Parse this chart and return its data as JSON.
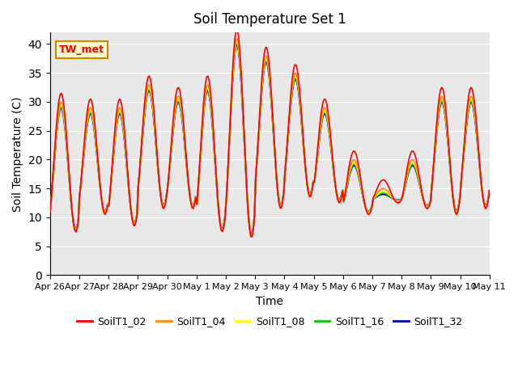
{
  "title": "Soil Temperature Set 1",
  "ylabel": "Soil Temperature (C)",
  "xlabel": "Time",
  "annotation": "TW_met",
  "series_names": [
    "SoilT1_02",
    "SoilT1_04",
    "SoilT1_08",
    "SoilT1_16",
    "SoilT1_32"
  ],
  "series_colors": [
    "#ff0000",
    "#ff8800",
    "#ffff00",
    "#00cc00",
    "#0000cc"
  ],
  "ylim": [
    0,
    42
  ],
  "yticks": [
    0,
    5,
    10,
    15,
    20,
    25,
    30,
    35,
    40
  ],
  "bg_color": "#e8e8e8",
  "x_tick_labels": [
    "Apr 26",
    "Apr 27",
    "Apr 28",
    "Apr 29",
    "Apr 30",
    "May 1",
    "May 2",
    "May 3",
    "May 4",
    "May 5",
    "May 6",
    "May 7",
    "May 8",
    "May 9",
    "May 10",
    "May 11"
  ],
  "n_ticks": 16,
  "points_per_day": 24
}
